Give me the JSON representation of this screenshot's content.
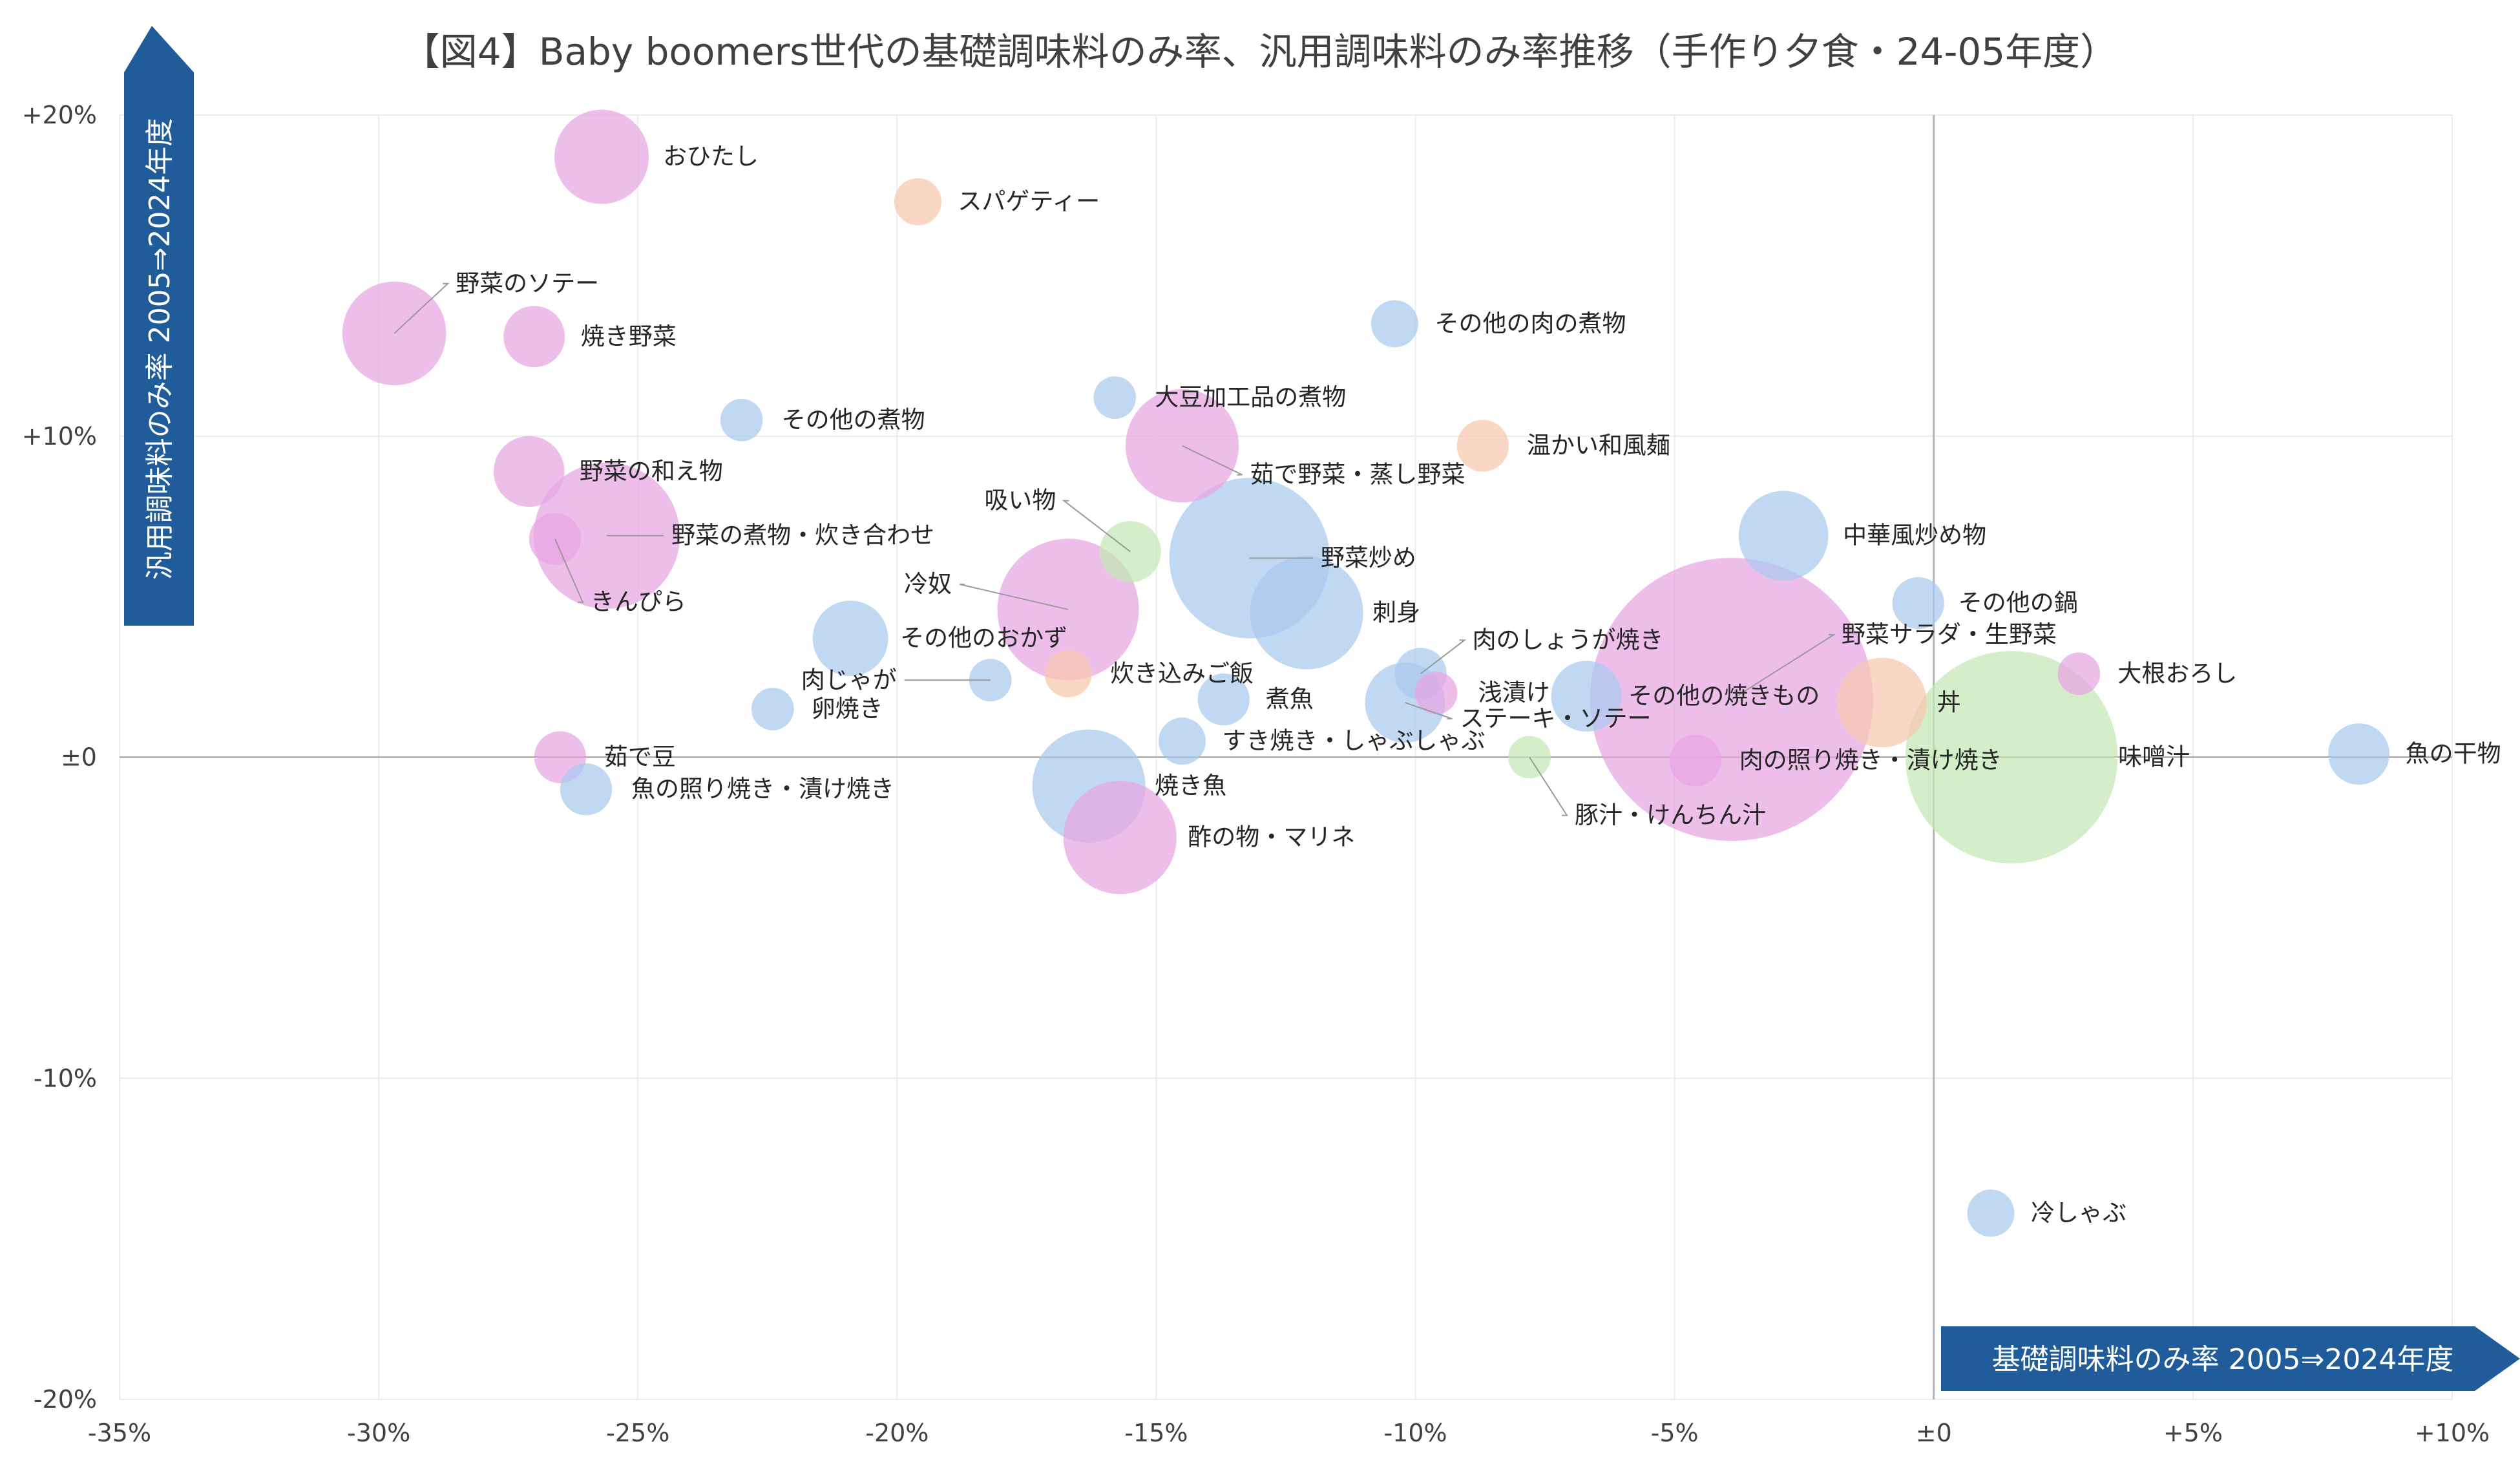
{
  "chart_data": {
    "type": "scatter",
    "title": "【図4】Baby boomers世代の基礎調味料のみ率、汎用調味料のみ率推移（手作り夕食・24-05年度）",
    "xlabel": "基礎調味料のみ率  2005⇒2024年度",
    "ylabel": "汎用調味料のみ率  2005⇒2024年度",
    "xlim": [
      -35,
      10
    ],
    "ylim": [
      -20,
      20
    ],
    "xticks": [
      -35,
      -30,
      -25,
      -20,
      -15,
      -10,
      -5,
      0,
      5,
      10
    ],
    "yticks": [
      -20,
      -10,
      0,
      10,
      20
    ],
    "xtick_labels": [
      "-35%",
      "-30%",
      "-25%",
      "-20%",
      "-15%",
      "-10%",
      "-5%",
      "±0",
      "+5%",
      "+10%"
    ],
    "ytick_labels": [
      "-20%",
      "-10%",
      "±0",
      "+10%",
      "+20%"
    ],
    "grid": true,
    "colors": {
      "blue": "#a9c9ef",
      "pink": "#e8a5e3",
      "orange": "#f8c7ad",
      "green": "#c2e8b3",
      "banner": "#1f5c99"
    },
    "points": [
      {
        "name": "おひたし",
        "x": -25.7,
        "y": 18.7,
        "size": 20,
        "color": "pink"
      },
      {
        "name": "スパゲティー",
        "x": -19.6,
        "y": 17.3,
        "size": 10,
        "color": "orange"
      },
      {
        "name": "野菜のソテー",
        "x": -29.7,
        "y": 13.2,
        "size": 22,
        "color": "pink"
      },
      {
        "name": "焼き野菜",
        "x": -27.0,
        "y": 13.1,
        "size": 13,
        "color": "pink"
      },
      {
        "name": "その他の肉の煮物",
        "x": -10.4,
        "y": 13.5,
        "size": 10,
        "color": "blue"
      },
      {
        "name": "大豆加工品の煮物",
        "x": -15.8,
        "y": 11.2,
        "size": 9,
        "color": "blue"
      },
      {
        "name": "その他の煮物",
        "x": -23.0,
        "y": 10.5,
        "size": 9,
        "color": "blue"
      },
      {
        "name": "茹で野菜・蒸し野菜",
        "x": -14.5,
        "y": 9.7,
        "size": 24,
        "color": "pink"
      },
      {
        "name": "温かい和風麺",
        "x": -8.7,
        "y": 9.7,
        "size": 11,
        "color": "orange"
      },
      {
        "name": "野菜の和え物",
        "x": -27.1,
        "y": 8.9,
        "size": 15,
        "color": "pink"
      },
      {
        "name": "野菜の煮物・炊き合わせ",
        "x": -25.6,
        "y": 6.9,
        "size": 31,
        "color": "pink"
      },
      {
        "name": "きんぴら",
        "x": -26.6,
        "y": 6.8,
        "size": 11,
        "color": "pink"
      },
      {
        "name": "吸い物",
        "x": -15.5,
        "y": 6.4,
        "size": 13,
        "color": "green"
      },
      {
        "name": "中華風炒め物",
        "x": -2.9,
        "y": 6.9,
        "size": 19,
        "color": "blue"
      },
      {
        "name": "野菜炒め",
        "x": -13.2,
        "y": 6.2,
        "size": 34,
        "color": "blue"
      },
      {
        "name": "冷奴",
        "x": -16.7,
        "y": 4.6,
        "size": 30,
        "color": "pink"
      },
      {
        "name": "刺身",
        "x": -12.1,
        "y": 4.5,
        "size": 24,
        "color": "blue"
      },
      {
        "name": "その他の鍋",
        "x": -0.3,
        "y": 4.8,
        "size": 11,
        "color": "blue"
      },
      {
        "name": "その他のおかず",
        "x": -20.9,
        "y": 3.7,
        "size": 16,
        "color": "blue"
      },
      {
        "name": "野菜サラダ・生野菜",
        "x": -3.9,
        "y": 1.8,
        "size": 60,
        "color": "pink"
      },
      {
        "name": "肉のしょうが焼き",
        "x": -9.9,
        "y": 2.6,
        "size": 11,
        "color": "blue"
      },
      {
        "name": "大根おろし",
        "x": 2.8,
        "y": 2.6,
        "size": 9,
        "color": "pink"
      },
      {
        "name": "炊き込みご飯",
        "x": -16.7,
        "y": 2.6,
        "size": 10,
        "color": "orange"
      },
      {
        "name": "肉じゃが",
        "x": -18.2,
        "y": 2.4,
        "size": 9,
        "color": "blue"
      },
      {
        "name": "浅漬け",
        "x": -9.6,
        "y": 2.0,
        "size": 9,
        "color": "pink"
      },
      {
        "name": "その他の焼きもの",
        "x": -6.7,
        "y": 1.9,
        "size": 15,
        "color": "blue"
      },
      {
        "name": "煮魚",
        "x": -13.7,
        "y": 1.8,
        "size": 11,
        "color": "blue"
      },
      {
        "name": "ステーキ・ソテー",
        "x": -10.2,
        "y": 1.7,
        "size": 17,
        "color": "blue"
      },
      {
        "name": "丼",
        "x": -1.0,
        "y": 1.7,
        "size": 19,
        "color": "orange"
      },
      {
        "name": "卵焼き",
        "x": -22.4,
        "y": 1.5,
        "size": 9,
        "color": "blue"
      },
      {
        "name": "すき焼き・しゃぶしゃぶ",
        "x": -14.5,
        "y": 0.5,
        "size": 10,
        "color": "blue"
      },
      {
        "name": "魚の干物",
        "x": 8.2,
        "y": 0.1,
        "size": 13,
        "color": "blue"
      },
      {
        "name": "味噌汁",
        "x": 1.5,
        "y": 0.0,
        "size": 45,
        "color": "green"
      },
      {
        "name": "茹で豆",
        "x": -26.5,
        "y": 0.0,
        "size": 11,
        "color": "pink"
      },
      {
        "name": "豚汁・けんちん汁",
        "x": -7.8,
        "y": 0.0,
        "size": 9,
        "color": "green"
      },
      {
        "name": "肉の照り焼き・漬け焼き",
        "x": -4.6,
        "y": -0.1,
        "size": 11,
        "color": "pink"
      },
      {
        "name": "魚の照り焼き・漬け焼き",
        "x": -26.0,
        "y": -1.0,
        "size": 11,
        "color": "blue"
      },
      {
        "name": "焼き魚",
        "x": -16.3,
        "y": -0.9,
        "size": 24,
        "color": "blue"
      },
      {
        "name": "酢の物・マリネ",
        "x": -15.7,
        "y": -2.5,
        "size": 24,
        "color": "pink"
      },
      {
        "name": "冷しゃぶ",
        "x": 1.1,
        "y": -14.2,
        "size": 10,
        "color": "blue"
      }
    ]
  }
}
